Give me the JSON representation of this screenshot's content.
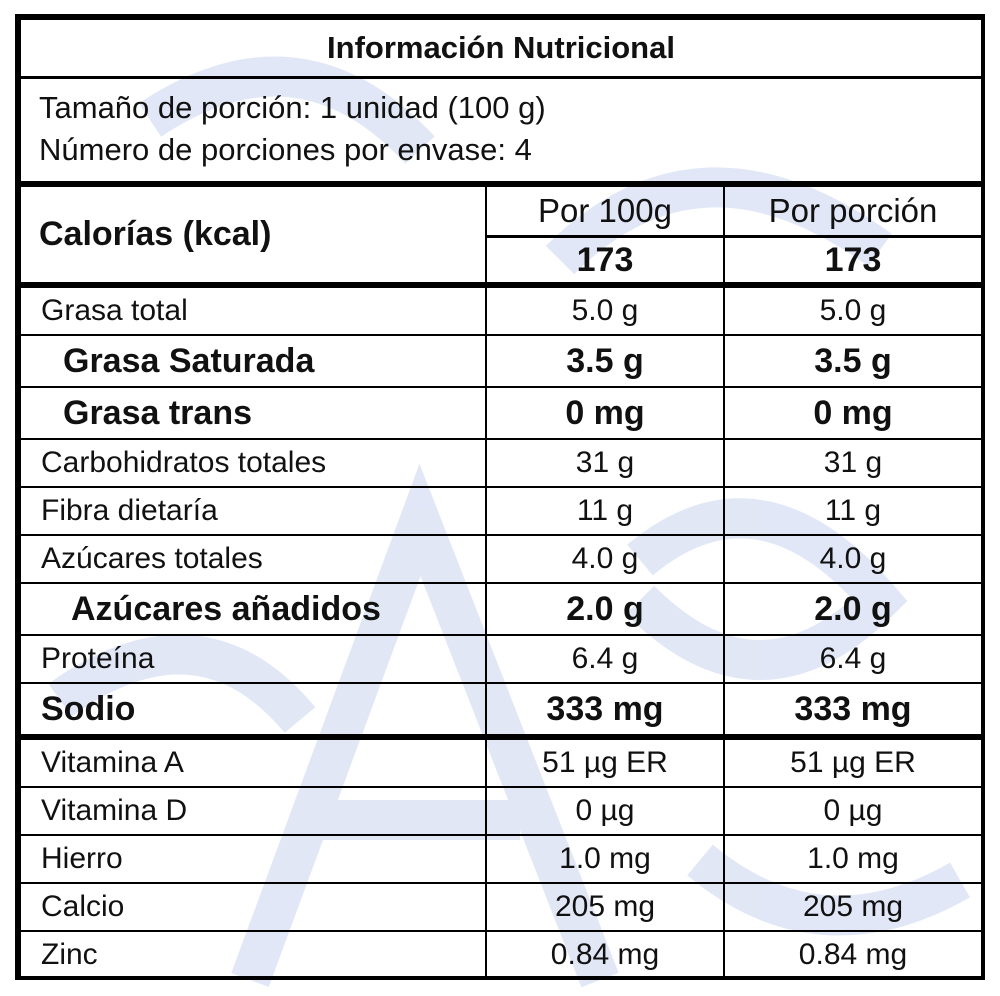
{
  "title": "Información Nutricional",
  "serving_size": "Tamaño de porción: 1 unidad (100 g)",
  "servings_per_container": "Número de porciones por envase: 4",
  "calories": {
    "label": "Calorías (kcal)",
    "col1_header": "Por 100g",
    "col2_header": "Por porción",
    "per_100g": "173",
    "per_serving": "173"
  },
  "nutrients": [
    {
      "name": "Grasa total",
      "per_100g": "5.0 g",
      "per_serving": "5.0 g"
    },
    {
      "name": "Grasa Saturada",
      "per_100g": "3.5 g",
      "per_serving": "3.5 g"
    },
    {
      "name": "Grasa trans",
      "per_100g": "0 mg",
      "per_serving": "0 mg"
    },
    {
      "name": "Carbohidratos totales",
      "per_100g": "31 g",
      "per_serving": "31 g"
    },
    {
      "name": "Fibra dietaría",
      "per_100g": "11 g",
      "per_serving": "11 g"
    },
    {
      "name": "Azúcares totales",
      "per_100g": "4.0 g",
      "per_serving": "4.0 g"
    },
    {
      "name": "Azúcares añadidos",
      "per_100g": "2.0 g",
      "per_serving": "2.0 g"
    },
    {
      "name": "Proteína",
      "per_100g": "6.4 g",
      "per_serving": "6.4 g"
    },
    {
      "name": "Sodio",
      "per_100g": "333 mg",
      "per_serving": "333 mg"
    },
    {
      "name": "Vitamina A",
      "per_100g": "51 µg ER",
      "per_serving": "51 µg ER"
    },
    {
      "name": "Vitamina D",
      "per_100g": "0 µg",
      "per_serving": "0 µg"
    },
    {
      "name": "Hierro",
      "per_100g": "1.0 mg",
      "per_serving": "1.0 mg"
    },
    {
      "name": "Calcio",
      "per_100g": "205 mg",
      "per_serving": "205 mg"
    },
    {
      "name": "Zinc",
      "per_100g": "0.84 mg",
      "per_serving": "0.84 mg"
    }
  ],
  "colors": {
    "border": "#000000",
    "watermark": "#c9d4ee"
  }
}
